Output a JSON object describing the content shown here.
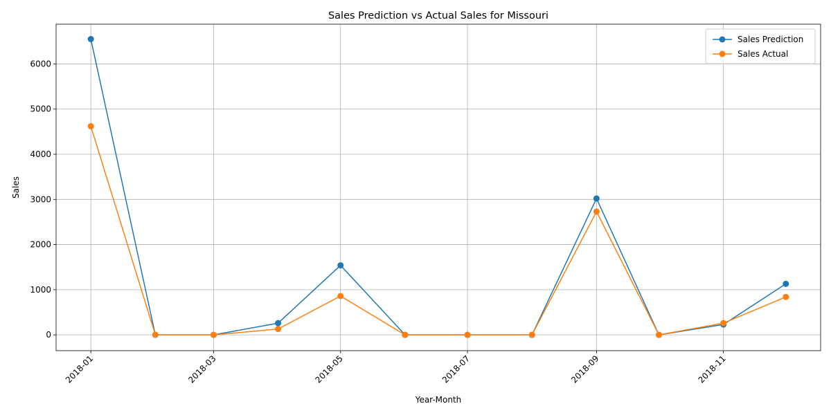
{
  "chart_data": {
    "type": "line",
    "title": "Sales Prediction vs Actual Sales for Missouri",
    "xlabel": "Year-Month",
    "ylabel": "Sales",
    "x": [
      "2018-01-01",
      "2018-02-01",
      "2018-03-01",
      "2018-04-01",
      "2018-05-01",
      "2018-06-01",
      "2018-07-01",
      "2018-08-01",
      "2018-09-01",
      "2018-10-01",
      "2018-11-01",
      "2018-12-01"
    ],
    "x_ticks": [
      "2018-01",
      "2018-03",
      "2018-05",
      "2018-07",
      "2018-09",
      "2018-11"
    ],
    "y_ticks": [
      0,
      1000,
      2000,
      3000,
      4000,
      5000,
      6000
    ],
    "ylim": [
      -350,
      6880
    ],
    "grid": true,
    "legend_position": "top-right",
    "series": [
      {
        "name": "Sales Prediction",
        "color": "#1f77b4",
        "values": [
          6550,
          0,
          0,
          260,
          1540,
          0,
          0,
          0,
          3020,
          0,
          230,
          1130
        ]
      },
      {
        "name": "Sales Actual",
        "color": "#ff7f0e",
        "values": [
          4620,
          0,
          0,
          130,
          860,
          0,
          0,
          0,
          2730,
          0,
          260,
          840
        ]
      }
    ]
  }
}
